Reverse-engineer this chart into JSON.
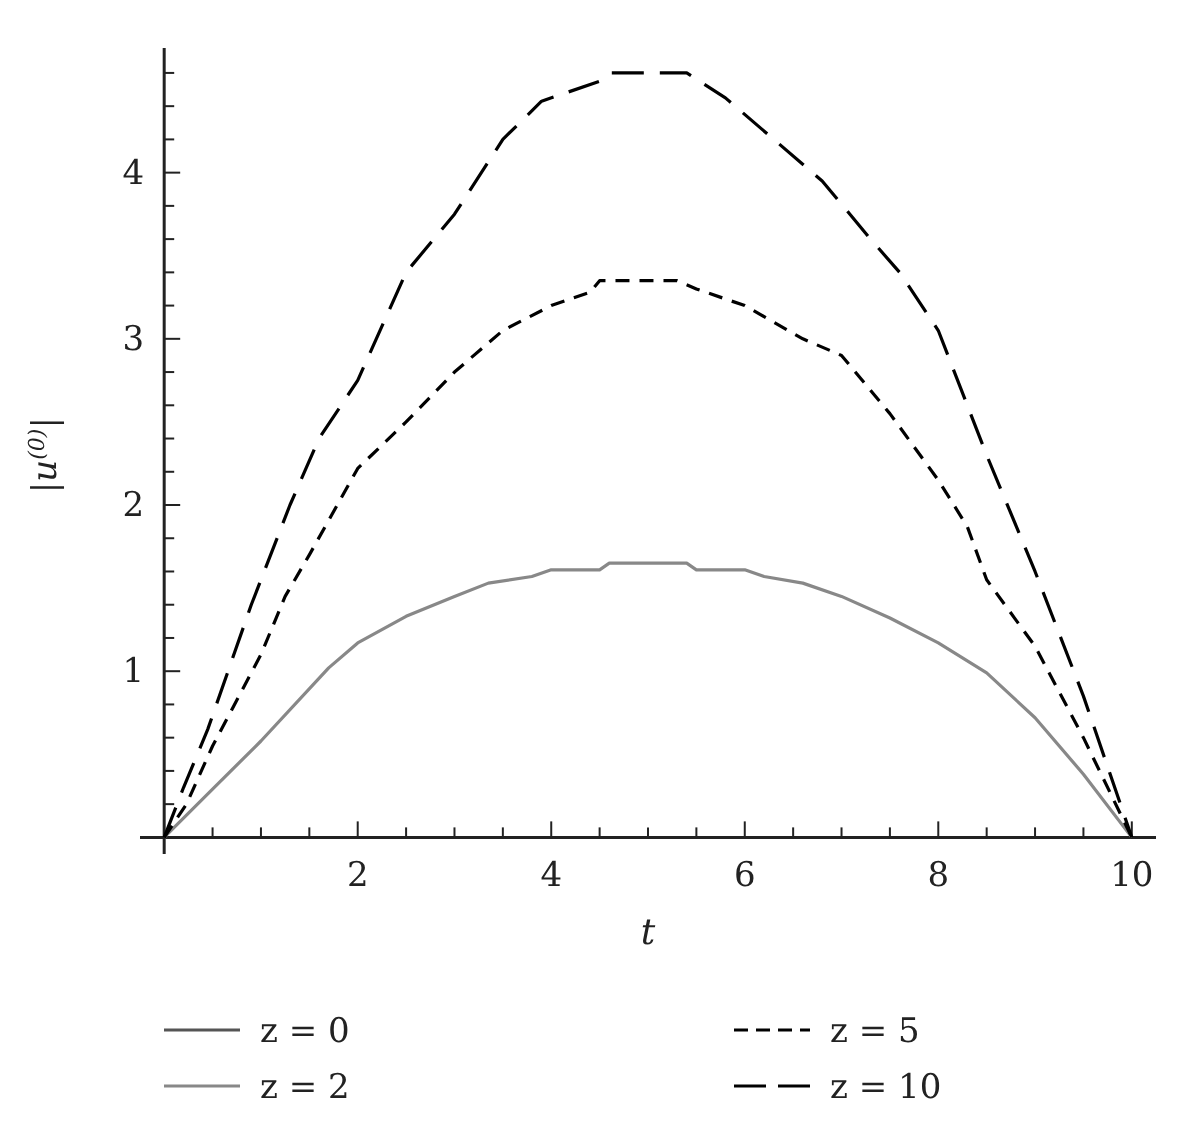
{
  "chart_data": {
    "type": "line",
    "xlabel": "t",
    "ylabel": "|u$^{(0)}$|",
    "xlim": [
      -0.25,
      10.25
    ],
    "ylim": [
      -0.1,
      4.75
    ],
    "xticks": [
      {
        "value": 0.5,
        "label": null
      },
      {
        "value": 1,
        "label": null
      },
      {
        "value": 1.5,
        "label": null
      },
      2,
      {
        "value": 2.5,
        "label": null
      },
      {
        "value": 3,
        "label": null
      },
      {
        "value": 3.5,
        "label": null
      },
      4,
      {
        "value": 4.5,
        "label": null
      },
      {
        "value": 5,
        "label": null
      },
      {
        "value": 5.5,
        "label": null
      },
      6,
      {
        "value": 6.5,
        "label": null
      },
      {
        "value": 7,
        "label": null
      },
      {
        "value": 7.5,
        "label": null
      },
      8,
      {
        "value": 8.5,
        "label": null
      },
      {
        "value": 9,
        "label": null
      },
      {
        "value": 9.5,
        "label": null
      },
      10
    ],
    "yticks": [
      {
        "value": 0.2,
        "label": null
      },
      {
        "value": 0.4,
        "label": null
      },
      {
        "value": 0.6,
        "label": null
      },
      {
        "value": 0.8,
        "label": null
      },
      1,
      {
        "value": 1.2,
        "label": null
      },
      {
        "value": 1.4,
        "label": null
      },
      {
        "value": 1.6,
        "label": null
      },
      {
        "value": 1.8,
        "label": null
      },
      2,
      {
        "value": 2.2,
        "label": null
      },
      {
        "value": 2.4,
        "label": null
      },
      {
        "value": 2.6,
        "label": null
      },
      {
        "value": 2.8,
        "label": null
      },
      3,
      {
        "value": 3.2,
        "label": null
      },
      {
        "value": 3.4,
        "label": null
      },
      {
        "value": 3.6,
        "label": null
      },
      {
        "value": 3.8,
        "label": null
      },
      4,
      {
        "value": 4.2,
        "label": null
      },
      {
        "value": 4.4,
        "label": null
      },
      {
        "value": 4.6,
        "label": null
      }
    ],
    "legend": "bottom",
    "grid": false,
    "series": [
      {
        "name": "z = 0",
        "color": "#555555",
        "line_style": "solid"
      },
      {
        "name": "z = 2",
        "color": "#888888",
        "line_style": "solid",
        "x": [
          0,
          0.5,
          1,
          1.7,
          2,
          2.5,
          3,
          3.35,
          3.8,
          4,
          4.5,
          4.6,
          5.4,
          5.5,
          6,
          6.2,
          6.6,
          7,
          7.5,
          8,
          8.5,
          9,
          9.5,
          10
        ],
        "values": [
          0,
          0.29,
          0.58,
          1.02,
          1.17,
          1.33,
          1.45,
          1.53,
          1.57,
          1.61,
          1.61,
          1.65,
          1.65,
          1.61,
          1.61,
          1.57,
          1.53,
          1.45,
          1.32,
          1.17,
          0.99,
          0.72,
          0.38,
          0
        ]
      },
      {
        "name": "z = 5",
        "color": "#000000",
        "line_style": "dashed",
        "x": [
          0,
          0.23,
          0.5,
          1,
          1.25,
          1.5,
          2,
          2.5,
          3,
          3.5,
          4,
          4.4,
          4.5,
          5.3,
          5.5,
          6,
          6.6,
          7,
          7.5,
          8,
          8.3,
          8.5,
          9,
          9.5,
          10
        ],
        "values": [
          0,
          0.2,
          0.55,
          1.1,
          1.45,
          1.7,
          2.22,
          2.5,
          2.8,
          3.05,
          3.2,
          3.28,
          3.35,
          3.35,
          3.3,
          3.2,
          3.0,
          2.9,
          2.55,
          2.15,
          1.87,
          1.55,
          1.15,
          0.6,
          0
        ]
      },
      {
        "name": "z = 10",
        "color": "#000000",
        "line_style": "longdash",
        "x": [
          0,
          0.2,
          0.45,
          0.9,
          1.3,
          1.6,
          2,
          2.5,
          3,
          3.5,
          3.9,
          4.5,
          4.6,
          5.4,
          5.8,
          6.3,
          6.8,
          7.3,
          7.6,
          8,
          8.5,
          9,
          9.5,
          10
        ],
        "values": [
          0,
          0.3,
          0.65,
          1.4,
          2.0,
          2.4,
          2.75,
          3.4,
          3.75,
          4.2,
          4.43,
          4.55,
          4.6,
          4.6,
          4.45,
          4.2,
          3.95,
          3.6,
          3.4,
          3.05,
          2.3,
          1.6,
          0.85,
          0
        ]
      }
    ]
  }
}
